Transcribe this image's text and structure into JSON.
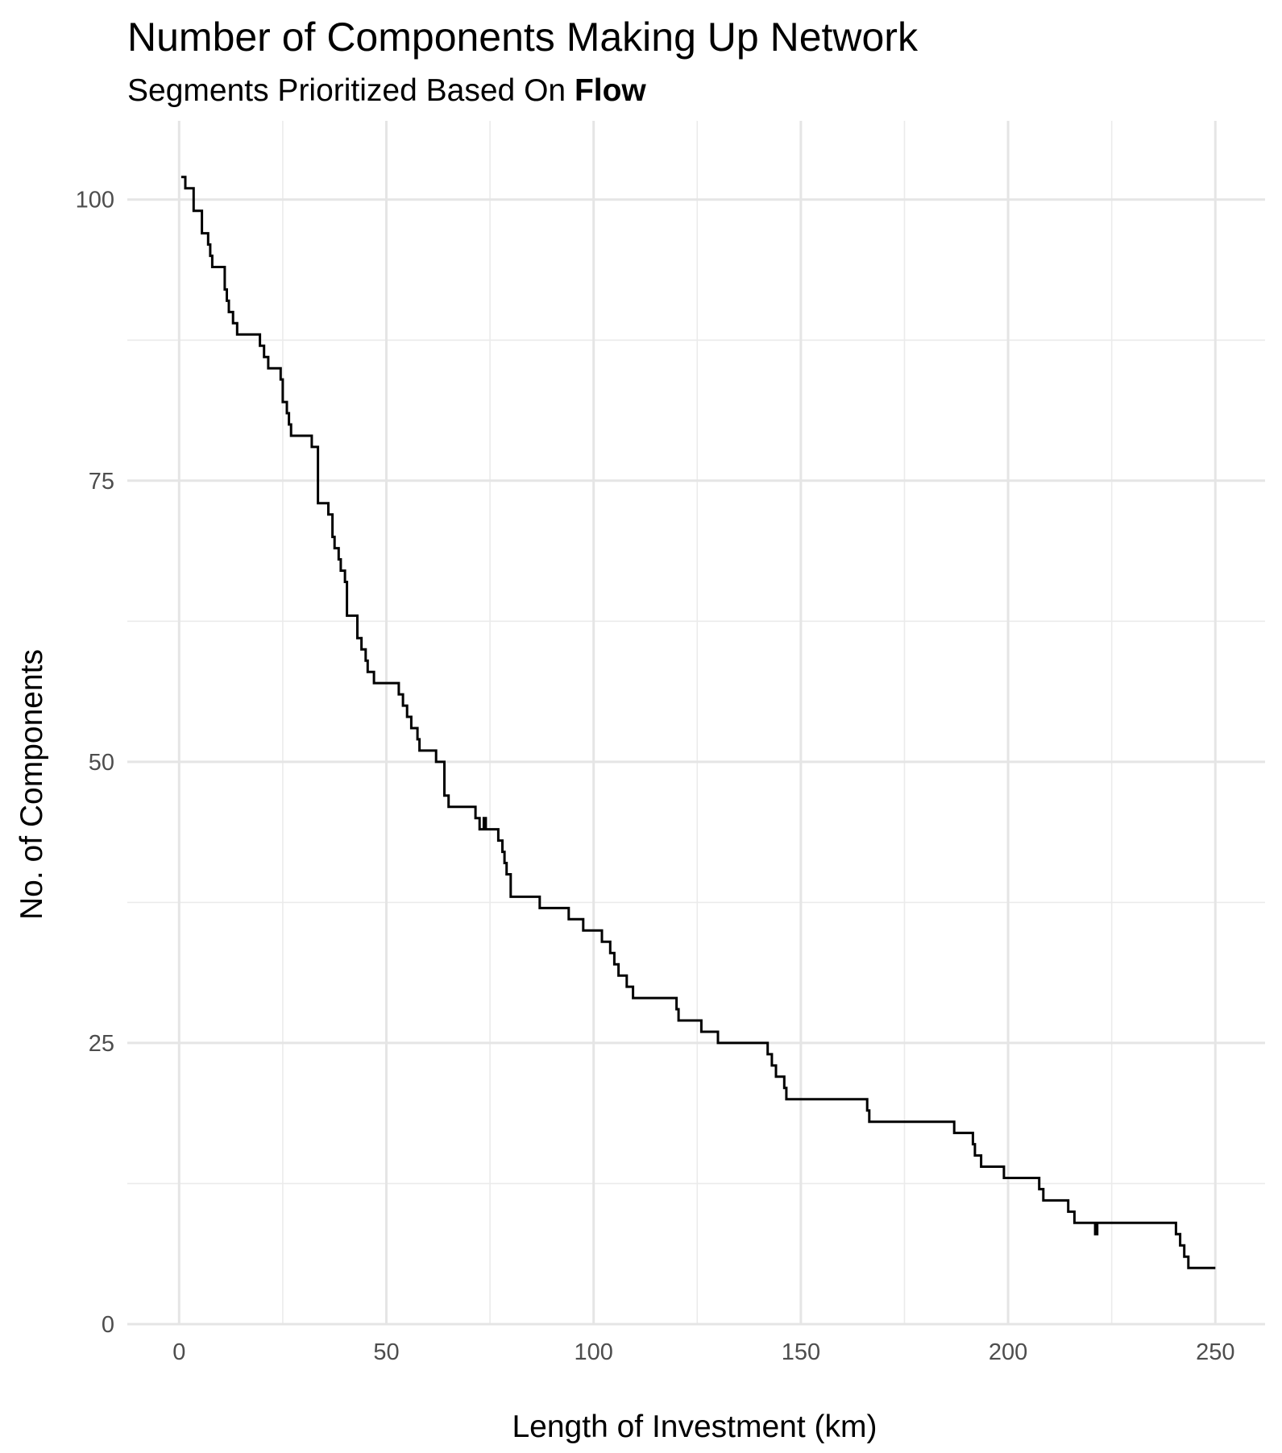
{
  "chart_data": {
    "type": "line",
    "title": "Number of Components Making Up Network",
    "subtitle_prefix": "Segments Prioritized Based On ",
    "subtitle_emphasis": "Flow",
    "xlabel": "Length of Investment (km)",
    "ylabel": "No. of Components",
    "xlim": [
      -12.5,
      262
    ],
    "ylim": [
      0,
      107
    ],
    "x_ticks": [
      0,
      50,
      100,
      150,
      200,
      250
    ],
    "y_ticks": [
      0,
      25,
      50,
      75,
      100
    ],
    "x_tick_labels": [
      "0",
      "50",
      "100",
      "150",
      "200",
      "250"
    ],
    "y_tick_labels": [
      "0",
      "25",
      "50",
      "75",
      "100"
    ],
    "grid": true,
    "step": "hv",
    "series": [
      {
        "color": "#000000",
        "x": [
          0.5,
          1.5,
          3.5,
          5.5,
          7.0,
          7.5,
          8.0,
          11.0,
          11.5,
          12.0,
          13.0,
          14.0,
          19.5,
          20.5,
          21.5,
          24.5,
          25.0,
          26.0,
          26.5,
          27.0,
          30.0,
          32.0,
          33.0,
          33.5,
          36.0,
          37.0,
          37.5,
          38.5,
          39.0,
          40.0,
          40.5,
          43.0,
          44.0,
          45.0,
          45.5,
          46.0,
          47.0,
          53.0,
          53.5,
          54.0,
          55.0,
          56.0,
          57.5,
          58.0,
          62.0,
          64.0,
          65.0,
          67.0,
          71.5,
          72.5,
          73.5,
          74.0,
          77.0,
          78.0,
          78.5,
          79.0,
          80.0,
          81.0,
          87.0,
          94.0,
          97.5,
          102.0,
          104.0,
          105.0,
          106.0,
          108.0,
          109.5,
          112.0,
          120.0,
          120.5,
          126.0,
          130.0,
          142.0,
          142.5,
          143.0,
          144.0,
          146.0,
          146.5,
          166.0,
          166.5,
          179.0,
          187.0,
          191.5,
          192.0,
          193.5,
          199.0,
          207.5,
          208.5,
          214.5,
          216.0,
          221.0,
          221.5,
          240.5,
          241.5,
          242.5,
          243.5,
          250.0
        ],
        "y": [
          102,
          101,
          99,
          97,
          96,
          95,
          94,
          92,
          91,
          90,
          89,
          88,
          87,
          86,
          85,
          84,
          82,
          81,
          80,
          79,
          79,
          78,
          78,
          73,
          72,
          70,
          69,
          68,
          67,
          66,
          63,
          61,
          60,
          59,
          58,
          58,
          57,
          56,
          56,
          55,
          54,
          53,
          52,
          51,
          50,
          47,
          46,
          46,
          45,
          44,
          45,
          44,
          43,
          42,
          41,
          40,
          38,
          38,
          37,
          36,
          35,
          34,
          33,
          32,
          31,
          30,
          29,
          29,
          28,
          27,
          26,
          25,
          24,
          24,
          23,
          22,
          21,
          20,
          19,
          18,
          18,
          17,
          16,
          15,
          14,
          13,
          12,
          11,
          10,
          9,
          8,
          9,
          8,
          7,
          6,
          5,
          5
        ]
      }
    ]
  }
}
